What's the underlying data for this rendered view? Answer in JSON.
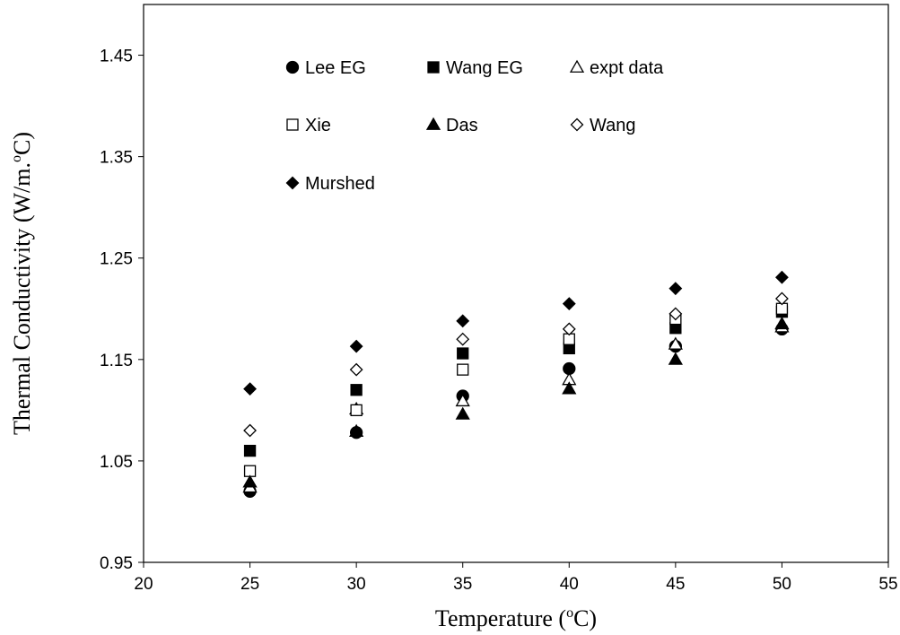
{
  "chart_data": {
    "type": "scatter",
    "xlabel": "Temperature (",
    "xlabel_sup": "o",
    "xlabel_end": "C)",
    "ylabel": "Thermal Conductivity (W/m.",
    "ylabel_sup": "o",
    "ylabel_end": "C)",
    "xlim": [
      20,
      55
    ],
    "ylim": [
      0.95,
      1.5
    ],
    "xticks": [
      "20",
      "25",
      "30",
      "35",
      "40",
      "45",
      "50",
      "55"
    ],
    "yticks": [
      "0.95",
      "1.05",
      "1.15",
      "1.25",
      "1.35",
      "1.45"
    ],
    "grid": false,
    "legend_position": "top-left",
    "x": [
      25,
      30,
      35,
      40,
      45,
      50
    ],
    "series": [
      {
        "name": "Lee EG",
        "marker": "filled-circle",
        "values": [
          1.02,
          1.078,
          1.114,
          1.141,
          1.163,
          1.18
        ]
      },
      {
        "name": "Wang EG",
        "marker": "filled-square",
        "values": [
          1.06,
          1.12,
          1.156,
          1.161,
          1.181,
          1.197
        ]
      },
      {
        "name": "expt data",
        "marker": "open-triangle",
        "values": [
          1.024,
          1.101,
          1.109,
          1.13,
          1.165,
          1.182
        ]
      },
      {
        "name": "Xie",
        "marker": "open-square",
        "values": [
          1.04,
          1.1,
          1.14,
          1.17,
          1.19,
          1.2
        ]
      },
      {
        "name": "Das",
        "marker": "filled-triangle",
        "values": [
          1.029,
          1.079,
          1.096,
          1.121,
          1.15,
          1.185
        ]
      },
      {
        "name": "Wang",
        "marker": "open-diamond",
        "values": [
          1.08,
          1.14,
          1.17,
          1.18,
          1.195,
          1.21
        ]
      },
      {
        "name": "Murshed",
        "marker": "filled-diamond",
        "values": [
          1.121,
          1.163,
          1.188,
          1.205,
          1.22,
          1.231
        ]
      }
    ]
  }
}
